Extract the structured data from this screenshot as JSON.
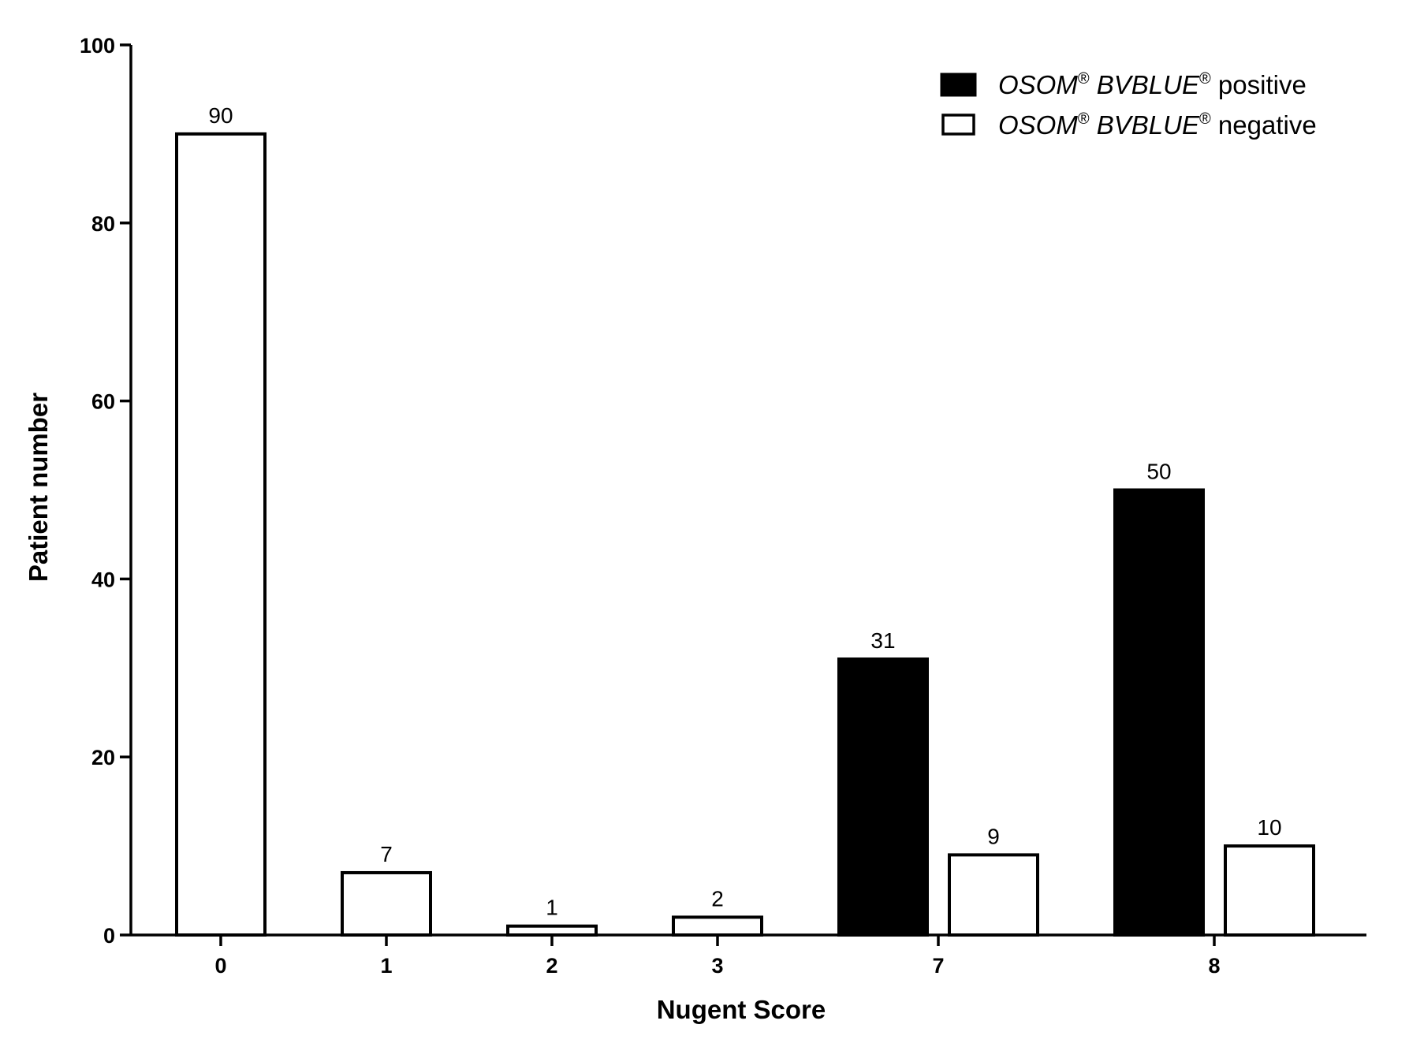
{
  "chart_data": {
    "type": "bar",
    "categories": [
      "0",
      "1",
      "2",
      "3",
      "7",
      "8"
    ],
    "series": [
      {
        "name": "OSOM® BVBLUE® positive",
        "color": "#000000",
        "values": [
          null,
          null,
          null,
          null,
          31,
          50
        ]
      },
      {
        "name": "OSOM® BVBLUE® negative",
        "color": "#ffffff",
        "values": [
          90,
          7,
          1,
          2,
          9,
          10
        ]
      }
    ],
    "xlabel": "Nugent Score",
    "ylabel": "Patient number",
    "ylim": [
      0,
      100
    ],
    "yticks": [
      0,
      20,
      40,
      60,
      80,
      100
    ],
    "data_labels": true,
    "grid": false,
    "legend": {
      "position": "top-right",
      "items": [
        {
          "brand_a": "OSOM",
          "mark_a": "®",
          "brand_b": "BVBLUE",
          "mark_b": "®",
          "status": "positive"
        },
        {
          "brand_a": "OSOM",
          "mark_a": "®",
          "brand_b": "BVBLUE",
          "mark_b": "®",
          "status": "negative"
        }
      ]
    }
  }
}
